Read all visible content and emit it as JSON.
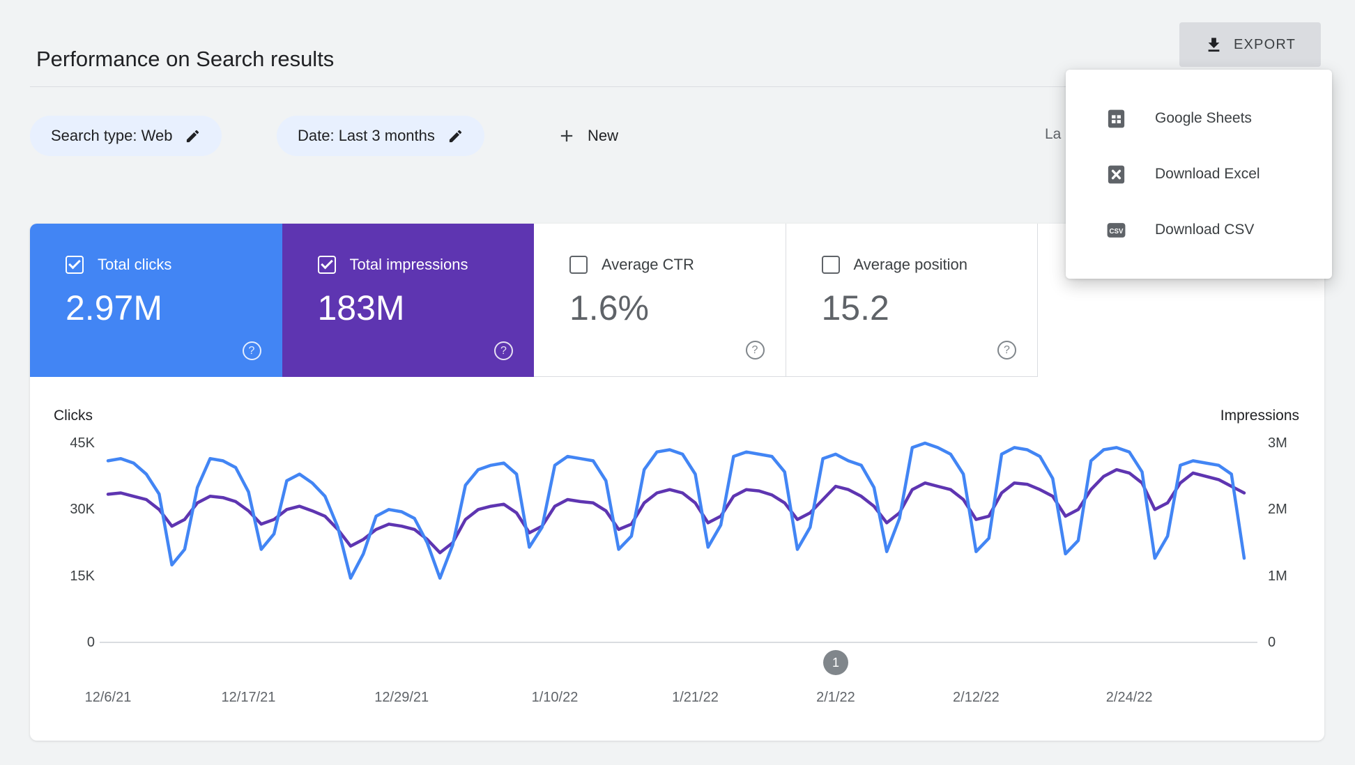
{
  "header": {
    "title": "Performance on Search results",
    "export_label": "EXPORT"
  },
  "filters": {
    "search_type_chip": "Search type: Web",
    "date_chip": "Date: Last 3 months",
    "new_button": "New",
    "last_updated_truncated": "La"
  },
  "export_menu": {
    "items": [
      {
        "icon": "google-sheets-icon",
        "label": "Google Sheets"
      },
      {
        "icon": "excel-icon",
        "label": "Download Excel"
      },
      {
        "icon": "csv-icon",
        "label": "Download CSV"
      }
    ]
  },
  "metrics": [
    {
      "label": "Total clicks",
      "value": "2.97M",
      "checked": true,
      "color": "#4285f4"
    },
    {
      "label": "Total impressions",
      "value": "183M",
      "checked": true,
      "color": "#5e35b1"
    },
    {
      "label": "Average CTR",
      "value": "1.6%",
      "checked": false
    },
    {
      "label": "Average position",
      "value": "15.2",
      "checked": false
    }
  ],
  "icons": {
    "help_glyph": "?",
    "csv_label": "CSV"
  },
  "pagination": {
    "page": "1"
  },
  "colors": {
    "accent_blue": "#4285f4",
    "accent_purple": "#5e35b1",
    "chip_bg": "#e8f0fe",
    "page_bg": "#f1f3f4"
  },
  "chart_data": {
    "type": "line",
    "title": "",
    "ylabel_left": "Clicks",
    "ylabel_right": "Impressions",
    "grid": false,
    "legend_position": "none",
    "y_left": {
      "max": 45000,
      "ticks": [
        {
          "label": "45K",
          "value": 45000
        },
        {
          "label": "30K",
          "value": 30000
        },
        {
          "label": "15K",
          "value": 15000
        },
        {
          "label": "0",
          "value": 0
        }
      ]
    },
    "y_right": {
      "max": 3000000,
      "ticks": [
        {
          "label": "3M",
          "value": 3000000
        },
        {
          "label": "2M",
          "value": 2000000
        },
        {
          "label": "1M",
          "value": 1000000
        },
        {
          "label": "0",
          "value": 0
        }
      ]
    },
    "x_ticks": [
      {
        "label": "12/6/21",
        "index": 0
      },
      {
        "label": "12/17/21",
        "index": 11
      },
      {
        "label": "12/29/21",
        "index": 23
      },
      {
        "label": "1/10/22",
        "index": 35
      },
      {
        "label": "1/21/22",
        "index": 46
      },
      {
        "label": "2/1/22",
        "index": 57
      },
      {
        "label": "2/12/22",
        "index": 68
      },
      {
        "label": "2/24/22",
        "index": 80
      }
    ],
    "series": [
      {
        "name": "Clicks",
        "axis": "left",
        "color": "#4285f4",
        "values": [
          41000,
          41500,
          40500,
          38000,
          33500,
          17500,
          21000,
          35000,
          41500,
          41000,
          39500,
          34000,
          21000,
          24500,
          36500,
          38000,
          36000,
          33000,
          26000,
          14500,
          20000,
          28500,
          30000,
          29500,
          28000,
          22500,
          14500,
          22000,
          35500,
          39000,
          40000,
          40500,
          38000,
          21500,
          26000,
          40000,
          42000,
          41500,
          41000,
          36500,
          21000,
          24000,
          39000,
          43000,
          43500,
          42500,
          38000,
          21500,
          26500,
          42000,
          43000,
          42500,
          42000,
          38500,
          21000,
          26000,
          41500,
          42500,
          41000,
          40000,
          35000,
          20500,
          28000,
          44000,
          45000,
          44000,
          42500,
          38000,
          20500,
          23500,
          42500,
          44000,
          43500,
          42000,
          37000,
          20000,
          23000,
          41000,
          43500,
          44000,
          43000,
          38500,
          19000,
          24000,
          40000,
          41000,
          40500,
          40000,
          38000,
          19000
        ]
      },
      {
        "name": "Impressions",
        "axis": "right",
        "color": "#5e35b1",
        "values": [
          2230000,
          2250000,
          2200000,
          2150000,
          2000000,
          1750000,
          1850000,
          2100000,
          2200000,
          2180000,
          2120000,
          1980000,
          1780000,
          1850000,
          2000000,
          2050000,
          1980000,
          1900000,
          1700000,
          1450000,
          1550000,
          1700000,
          1780000,
          1750000,
          1700000,
          1550000,
          1350000,
          1500000,
          1850000,
          2000000,
          2050000,
          2080000,
          1950000,
          1650000,
          1750000,
          2050000,
          2150000,
          2120000,
          2100000,
          1980000,
          1700000,
          1780000,
          2100000,
          2250000,
          2300000,
          2250000,
          2100000,
          1800000,
          1900000,
          2200000,
          2300000,
          2280000,
          2220000,
          2100000,
          1850000,
          1950000,
          2150000,
          2350000,
          2300000,
          2200000,
          2050000,
          1800000,
          1950000,
          2300000,
          2400000,
          2350000,
          2300000,
          2150000,
          1850000,
          1900000,
          2250000,
          2400000,
          2380000,
          2300000,
          2200000,
          1900000,
          2000000,
          2300000,
          2500000,
          2600000,
          2550000,
          2400000,
          2000000,
          2100000,
          2400000,
          2550000,
          2500000,
          2450000,
          2350000,
          2250000
        ]
      }
    ]
  }
}
